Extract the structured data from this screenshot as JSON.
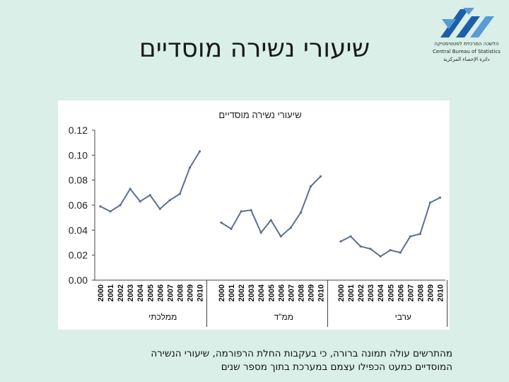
{
  "slide": {
    "title": "שיעורי נשירה מוסדיים",
    "caption_lines": [
      "מהתרשים עולה תמונה ברורה, כי בעקבות החלת הרפורמה, שיעורי הנשירה",
      "המוסדיים כמעט הכפילו עצמם במערכת בתוך מספר שנים"
    ]
  },
  "logo": {
    "hebrew": "הלשכה המרכזית לסטטיסטיקה",
    "english": "Central Bureau of Statistics",
    "arabic": "دائرة الإحصاء المركزية",
    "colors": {
      "blue": "#1a5fa8",
      "light_blue": "#5b9bd5"
    }
  },
  "chart_data": {
    "type": "line",
    "title": "שיעורי נשירה מוסדיים",
    "ylim": [
      0,
      0.12
    ],
    "yticks": [
      "0.00",
      "0.02",
      "0.04",
      "0.06",
      "0.08",
      "0.10",
      "0.12"
    ],
    "grid": false,
    "line_color": "#5b6f92",
    "categories": [
      "2000",
      "2001",
      "2002",
      "2003",
      "2004",
      "2005",
      "2006",
      "2007",
      "2008",
      "2009",
      "2010"
    ],
    "groups": [
      {
        "name": "ממלכתי",
        "values": [
          0.059,
          0.055,
          0.06,
          0.073,
          0.063,
          0.068,
          0.057,
          0.064,
          0.069,
          0.09,
          0.103
        ]
      },
      {
        "name": "ממ\"ד",
        "values": [
          0.046,
          0.041,
          0.055,
          0.056,
          0.038,
          0.048,
          0.035,
          0.042,
          0.054,
          0.075,
          0.083
        ]
      },
      {
        "name": "ערבי",
        "values": [
          0.031,
          0.035,
          0.027,
          0.025,
          0.019,
          0.024,
          0.022,
          0.035,
          0.037,
          0.062,
          0.066
        ]
      }
    ]
  }
}
